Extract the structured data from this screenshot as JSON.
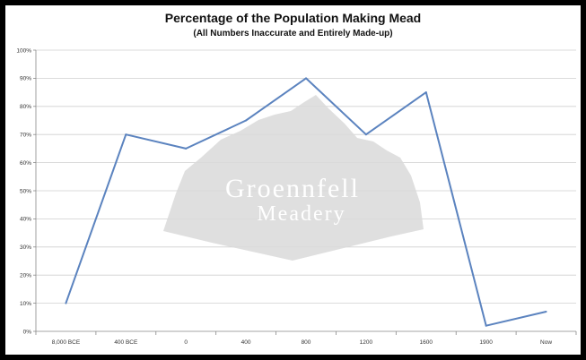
{
  "window": {
    "background": "#000000"
  },
  "chart_data": {
    "type": "line",
    "title": "Percentage of the Population Making Mead",
    "subtitle": "(All Numbers Inaccurate and Entirely Made-up)",
    "categories": [
      "8,000 BCE",
      "400 BCE",
      "0",
      "400",
      "800",
      "1200",
      "1600",
      "1900",
      "Now"
    ],
    "series": [
      {
        "values": [
          10,
          70,
          65,
          75,
          90,
          70,
          85,
          2,
          7
        ],
        "color": "#5b83bf"
      }
    ],
    "y_ticks": [
      "0%",
      "10%",
      "20%",
      "30%",
      "40%",
      "50%",
      "60%",
      "70%",
      "80%",
      "90%",
      "100%"
    ],
    "ylim": [
      0,
      100
    ],
    "grid": true,
    "xlabel": "",
    "ylabel": ""
  },
  "watermark": {
    "line1": "Groennfell",
    "line2": "Meadery"
  }
}
